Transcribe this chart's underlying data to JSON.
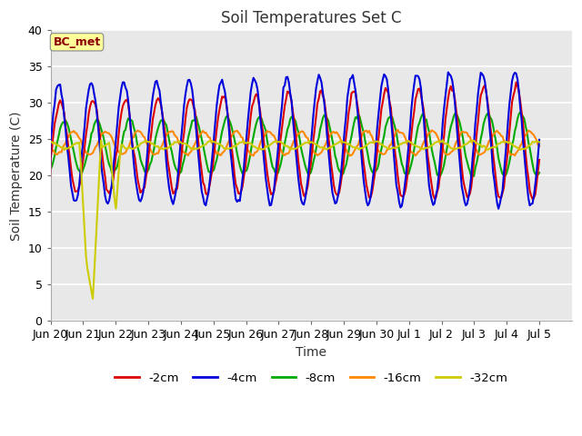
{
  "title": "Soil Temperatures Set C",
  "xlabel": "Time",
  "ylabel": "Soil Temperature (C)",
  "ylim": [
    0,
    40
  ],
  "series_colors": {
    "-2cm": "#dd0000",
    "-4cm": "#0000dd",
    "-8cm": "#00aa00",
    "-16cm": "#ff8800",
    "-32cm": "#cccc00"
  },
  "legend_labels": [
    "-2cm",
    "-4cm",
    "-8cm",
    "-16cm",
    "-32cm"
  ],
  "xtick_labels": [
    "Jun 20",
    "Jun 21",
    "Jun 22",
    "Jun 23",
    "Jun 24",
    "Jun 25",
    "Jun 26",
    "Jun 27",
    "Jun 28",
    "Jun 29",
    "Jun 30",
    "Jul 1",
    "Jul 2",
    "Jul 3",
    "Jul 4",
    "Jul 5"
  ],
  "ytick_vals": [
    0,
    5,
    10,
    15,
    20,
    25,
    30,
    35,
    40
  ],
  "annotation_text": "BC_met",
  "annotation_color": "#8b0000",
  "annotation_bg": "#ffff99",
  "plot_bg": "#e8e8e8",
  "fig_bg": "#ffffff",
  "linewidth": 1.5
}
